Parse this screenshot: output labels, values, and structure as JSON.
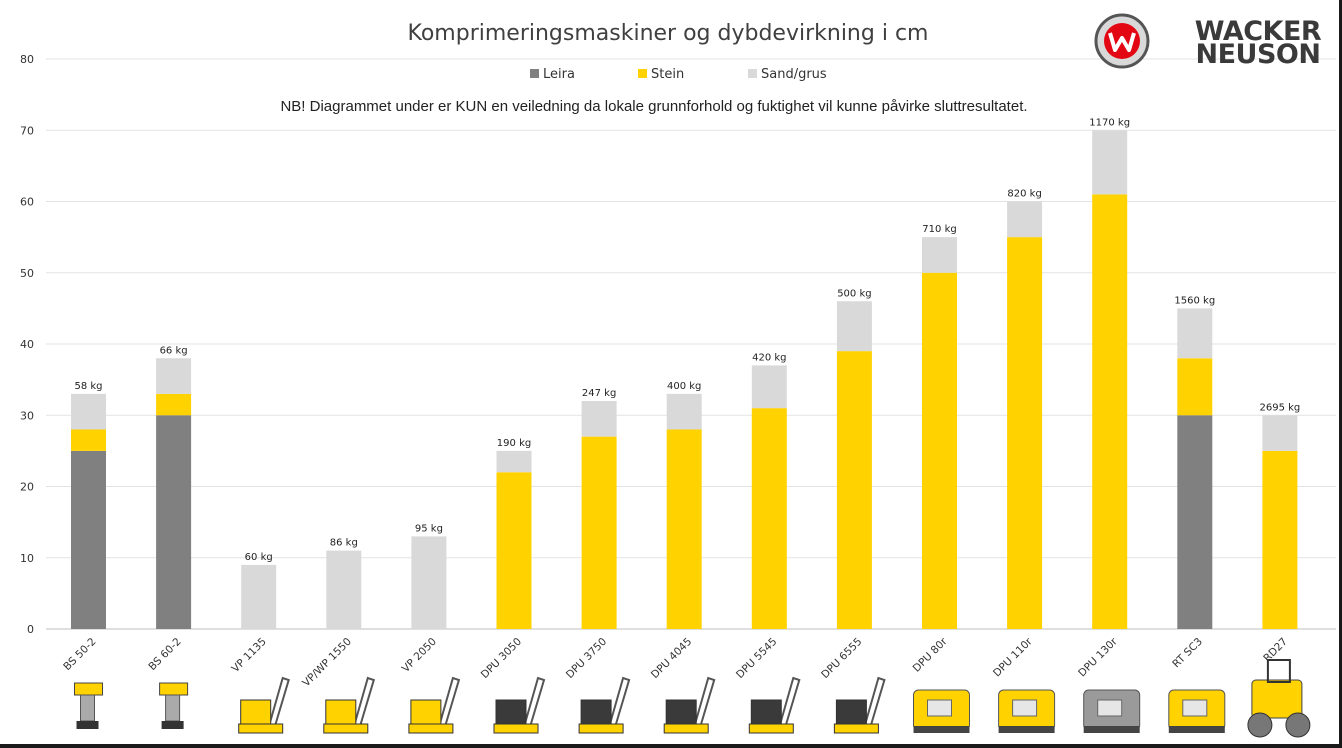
{
  "chart_data": {
    "type": "bar",
    "stacked": true,
    "title": "Komprimeringsmaskiner og dybdevirkning i cm",
    "subtitle": "NB! Diagrammet under er KUN en veiledning da lokale grunnforhold og fuktighet vil kunne påvirke sluttresultatet.",
    "categories": [
      "BS 50-2",
      "BS 60-2",
      "VP 1135",
      "VP/WP 1550",
      "VP 2050",
      "DPU 3050",
      "DPU 3750",
      "DPU 4045",
      "DPU 5545",
      "DPU 6555",
      "DPU 80r",
      "DPU 110r",
      "DPU 130r",
      "RT SC3",
      "RD27"
    ],
    "series": [
      {
        "name": "Leira",
        "color": "#808080",
        "values": [
          25,
          30,
          0,
          0,
          0,
          0,
          0,
          0,
          0,
          0,
          0,
          0,
          0,
          30,
          0
        ]
      },
      {
        "name": "Stein",
        "color": "#FFD200",
        "values": [
          3,
          3,
          0,
          0,
          0,
          22,
          27,
          28,
          31,
          39,
          50,
          55,
          61,
          8,
          25
        ]
      },
      {
        "name": "Sand/grus",
        "color": "#D9D9D9",
        "values": [
          5,
          5,
          9,
          11,
          13,
          3,
          5,
          5,
          6,
          7,
          5,
          5,
          9,
          7,
          5
        ]
      }
    ],
    "data_labels": [
      "58 kg",
      "66 kg",
      "60 kg",
      "86 kg",
      "95 kg",
      "190 kg",
      "247 kg",
      "400 kg",
      "420 kg",
      "500 kg",
      "710 kg",
      "820 kg",
      "1170 kg",
      "1560 kg",
      "2695 kg"
    ],
    "ylim": [
      0,
      80
    ],
    "yticks": [
      0,
      10,
      20,
      30,
      40,
      50,
      60,
      70,
      80
    ],
    "xlabel": "",
    "ylabel": "",
    "grid": true,
    "legend_position": "top-center"
  },
  "brand": {
    "line1": "WACKER",
    "line2": "NEUSON",
    "logo_color": "#E30613"
  }
}
